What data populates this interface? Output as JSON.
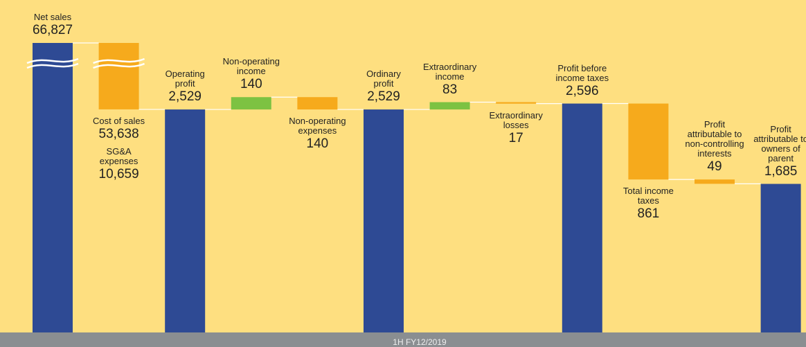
{
  "chart_data": {
    "type": "waterfall",
    "colors": {
      "total": "#2e4a94",
      "decrease": "#f6aa1c",
      "increase": "#7dc242"
    },
    "footer": "1H FY12/2019",
    "bars": [
      {
        "kind": "total",
        "label_side": "above",
        "labels": [
          "Net sales"
        ],
        "values": [
          66827
        ],
        "value_labels": [
          "66,827"
        ]
      },
      {
        "kind": "decrease",
        "label_side": "below",
        "labels": [
          "Cost of sales",
          "SG&A\nexpenses"
        ],
        "values": [
          53638,
          10659
        ],
        "value_labels": [
          "53,638",
          "10,659"
        ]
      },
      {
        "kind": "total",
        "label_side": "above",
        "labels": [
          "Operating\nprofit"
        ],
        "values": [
          2529
        ],
        "value_labels": [
          "2,529"
        ]
      },
      {
        "kind": "increase",
        "label_side": "above",
        "labels": [
          "Non-operating\nincome"
        ],
        "values": [
          140
        ],
        "value_labels": [
          "140"
        ]
      },
      {
        "kind": "decrease",
        "label_side": "below",
        "labels": [
          "Non-operating\nexpenses"
        ],
        "values": [
          140
        ],
        "value_labels": [
          "140"
        ]
      },
      {
        "kind": "total",
        "label_side": "above",
        "labels": [
          "Ordinary\nprofit"
        ],
        "values": [
          2529
        ],
        "value_labels": [
          "2,529"
        ]
      },
      {
        "kind": "increase",
        "label_side": "above",
        "labels": [
          "Extraordinary\nincome"
        ],
        "values": [
          83
        ],
        "value_labels": [
          "83"
        ]
      },
      {
        "kind": "decrease",
        "label_side": "below",
        "labels": [
          "Extraordinary\nlosses"
        ],
        "values": [
          17
        ],
        "value_labels": [
          "17"
        ]
      },
      {
        "kind": "total",
        "label_side": "above",
        "labels": [
          "Profit before\nincome taxes"
        ],
        "values": [
          2596
        ],
        "value_labels": [
          "2,596"
        ]
      },
      {
        "kind": "decrease",
        "label_side": "below",
        "labels": [
          "Total income\ntaxes"
        ],
        "values": [
          861
        ],
        "value_labels": [
          "861"
        ]
      },
      {
        "kind": "decrease",
        "label_side": "above",
        "labels": [
          "Profit\nattributable to\nnon-controlling\ninterests"
        ],
        "values": [
          49
        ],
        "value_labels": [
          "49"
        ]
      },
      {
        "kind": "total",
        "label_side": "above",
        "labels": [
          "Profit\nattributable to\nowners of\nparent"
        ],
        "values": [
          1685
        ],
        "value_labels": [
          "1,685"
        ]
      }
    ]
  }
}
